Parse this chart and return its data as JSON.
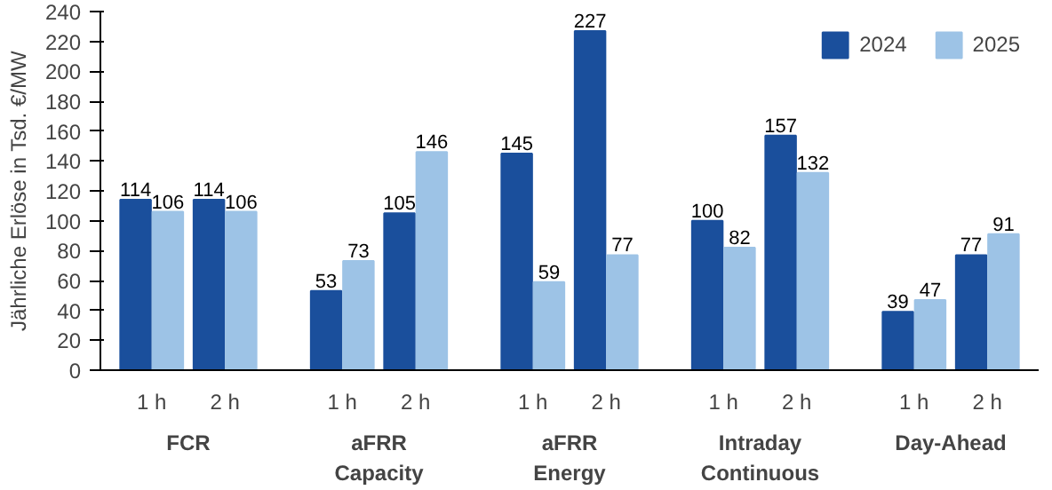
{
  "chart_data": {
    "type": "bar",
    "ylabel": "Jährliche Erlöse in Tsd. €/MW",
    "categories": [
      "1 h",
      "2 h",
      "1 h",
      "2 h",
      "1 h",
      "2 h",
      "1 h",
      "2 h",
      "1 h",
      "2 h"
    ],
    "series": [
      {
        "name": "2024",
        "color": "#1a4f9c",
        "values": [
          114,
          114,
          53,
          105,
          145,
          227,
          100,
          157,
          39,
          77
        ]
      },
      {
        "name": "2025",
        "color": "#9dc3e6",
        "values": [
          106,
          106,
          73,
          146,
          59,
          77,
          82,
          132,
          47,
          91
        ]
      }
    ],
    "annotations": [
      "FCR",
      "aFRR\nCapacity",
      "aFRR\nEnergy",
      "Intraday\nContinuous",
      "Day-Ahead"
    ],
    "ylim": [
      0,
      240
    ],
    "yticks": [
      0,
      20,
      40,
      60,
      80,
      100,
      120,
      140,
      160,
      180,
      200,
      220,
      240
    ],
    "grid": false,
    "legend": "top right",
    "data_labels": true
  }
}
